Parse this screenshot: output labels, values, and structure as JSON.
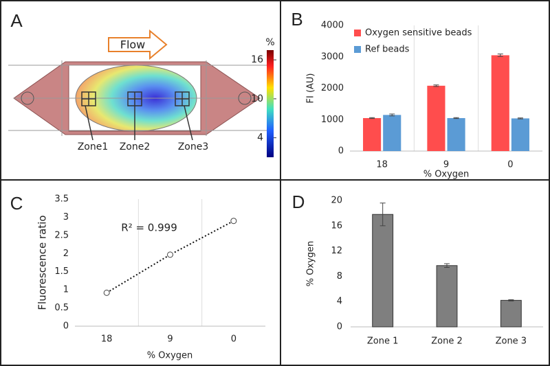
{
  "chart_data": [
    {
      "panel": "A",
      "type": "diagram",
      "annotation": "Flow",
      "labels": [
        "Zone1",
        "Zone2",
        "Zone3"
      ],
      "colorbar": {
        "label": "%",
        "lim": [
          1,
          17.5
        ],
        "ticks": [
          4,
          10,
          16
        ]
      }
    },
    {
      "panel": "B",
      "type": "bar",
      "categories": [
        "18",
        "9",
        "0"
      ],
      "series": [
        {
          "name": "Oxygen sensitive beads",
          "color": "#ff4d4d",
          "values": [
            1050,
            2080,
            3050
          ],
          "errors": [
            15,
            25,
            40
          ]
        },
        {
          "name": "Ref beads",
          "color": "#5b9bd5",
          "values": [
            1150,
            1050,
            1040
          ],
          "errors": [
            30,
            15,
            15
          ]
        }
      ],
      "ylim": [
        0,
        4000
      ],
      "yticks": [
        0,
        1000,
        2000,
        3000,
        4000
      ],
      "ylabel": "FI (AU)",
      "xlabel": "% Oxygen",
      "grid": "x",
      "legend": "upper left"
    },
    {
      "panel": "C",
      "type": "scatter",
      "categories": [
        "18",
        "9",
        "0"
      ],
      "values": [
        0.92,
        1.97,
        2.9
      ],
      "color": "#404040",
      "trendline": "dotted",
      "annotation": "R² = 0.999",
      "ylim": [
        0,
        3.5
      ],
      "yticks": [
        0,
        0.5,
        1,
        1.5,
        2,
        2.5,
        3,
        3.5
      ],
      "ylabel": "Fluorescence ratio",
      "xlabel": "% Oxygen",
      "grid": "x"
    },
    {
      "panel": "D",
      "type": "bar",
      "categories": [
        "Zone 1",
        "Zone 2",
        "Zone 3"
      ],
      "values": [
        17.8,
        9.7,
        4.2
      ],
      "errors": [
        1.8,
        0.3,
        0.1
      ],
      "color": "#7f7f7f",
      "ylim": [
        0,
        20
      ],
      "yticks": [
        0,
        4,
        8,
        12,
        16,
        20
      ],
      "ylabel": "% Oxygen",
      "grid": false
    }
  ]
}
